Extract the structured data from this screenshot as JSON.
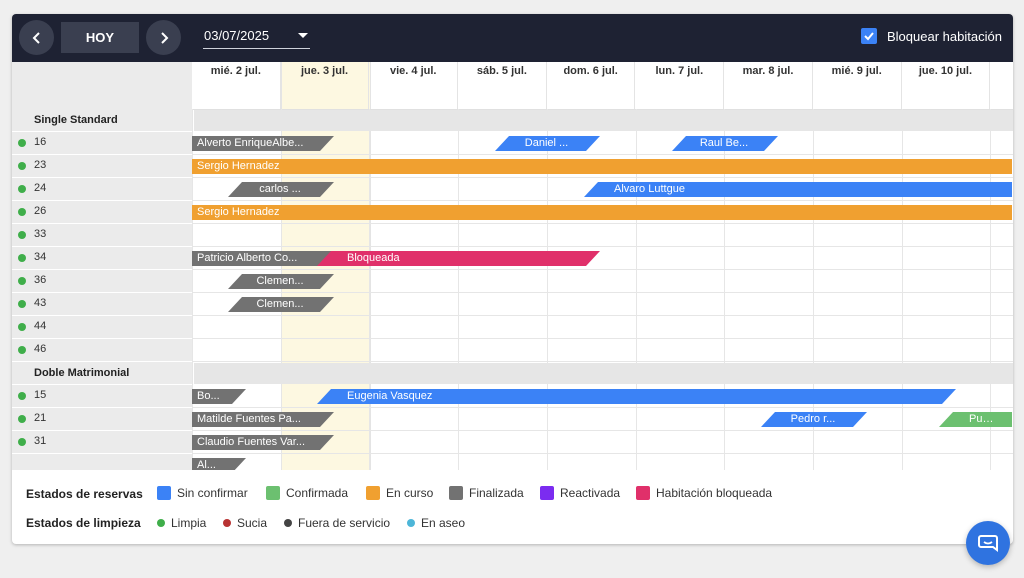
{
  "toolbar": {
    "prev_icon": "chevron-left-icon",
    "today_label": "HOY",
    "next_icon": "chevron-right-icon",
    "date_value": "03/07/2025",
    "block_room_label": "Bloquear habitación",
    "block_room_checked": true
  },
  "days": [
    "mié. 2 jul.",
    "jue. 3 jul.",
    "vie. 4 jul.",
    "sáb. 5 jul.",
    "dom. 6 jul.",
    "lun. 7 jul.",
    "mar. 8 jul.",
    "mié. 9 jul.",
    "jue. 10 jul."
  ],
  "today_label": "jue. 3 jul.",
  "categories": [
    {
      "name": "Single Standard",
      "rooms": [
        {
          "number": "16",
          "status": "Limpia",
          "bookings": [
            {
              "guest": "Alverto EnriqueAlbe...",
              "state": "Finalizada"
            },
            {
              "guest": "Daniel ...",
              "state": "Sin confirmar"
            },
            {
              "guest": "Raul Be...",
              "state": "Sin confirmar"
            }
          ]
        },
        {
          "number": "23",
          "status": "Limpia",
          "bookings": [
            {
              "guest": "Sergio Hernadez",
              "state": "En curso"
            }
          ]
        },
        {
          "number": "24",
          "status": "Limpia",
          "bookings": [
            {
              "guest": "carlos ...",
              "state": "Finalizada"
            },
            {
              "guest": "Alvaro Luttgue",
              "state": "Sin confirmar"
            }
          ]
        },
        {
          "number": "26",
          "status": "Limpia",
          "bookings": [
            {
              "guest": "Sergio Hernadez",
              "state": "En curso"
            }
          ]
        },
        {
          "number": "33",
          "status": "Limpia",
          "bookings": []
        },
        {
          "number": "34",
          "status": "Limpia",
          "bookings": [
            {
              "guest": "Patricio Alberto Co...",
              "state": "Finalizada"
            },
            {
              "guest": "Bloqueada",
              "state": "Habitación bloqueada"
            }
          ]
        },
        {
          "number": "36",
          "status": "Limpia",
          "bookings": [
            {
              "guest": "Clemen...",
              "state": "Finalizada"
            }
          ]
        },
        {
          "number": "43",
          "status": "Limpia",
          "bookings": [
            {
              "guest": "Clemen...",
              "state": "Finalizada"
            }
          ]
        },
        {
          "number": "44",
          "status": "Limpia",
          "bookings": []
        },
        {
          "number": "46",
          "status": "Limpia",
          "bookings": []
        }
      ]
    },
    {
      "name": "Doble Matrimonial",
      "rooms": [
        {
          "number": "15",
          "status": "Limpia",
          "bookings": [
            {
              "guest": "Bo...",
              "state": "Finalizada"
            },
            {
              "guest": "Eugenia Vasquez",
              "state": "Sin confirmar"
            }
          ]
        },
        {
          "number": "21",
          "status": "Limpia",
          "bookings": [
            {
              "guest": "Matilde Fuentes Pa...",
              "state": "Finalizada"
            },
            {
              "guest": "Pedro r...",
              "state": "Sin confirmar"
            },
            {
              "guest": "Pura Gu",
              "state": "Confirmada"
            }
          ]
        },
        {
          "number": "31",
          "status": "Limpia",
          "bookings": [
            {
              "guest": "Claudio Fuentes Var...",
              "state": "Finalizada"
            }
          ]
        },
        {
          "number": "",
          "status": "",
          "bookings": [
            {
              "guest": "Al...",
              "state": "Finalizada"
            }
          ]
        }
      ]
    }
  ],
  "legend": {
    "reservations_title": "Estados de reservas",
    "reservations": [
      {
        "label": "Sin confirmar",
        "color": "#3b82f6"
      },
      {
        "label": "Confirmada",
        "color": "#6cc070"
      },
      {
        "label": "En curso",
        "color": "#f0a030"
      },
      {
        "label": "Finalizada",
        "color": "#727272"
      },
      {
        "label": "Reactivada",
        "color": "#7b2cf0"
      },
      {
        "label": "Habitación bloqueada",
        "color": "#e0306a"
      }
    ],
    "cleaning_title": "Estados de limpieza",
    "cleaning": [
      {
        "label": "Limpia",
        "color": "#3fae4a"
      },
      {
        "label": "Sucia",
        "color": "#b83232"
      },
      {
        "label": "Fuera de servicio",
        "color": "#444444"
      },
      {
        "label": "En aseo",
        "color": "#4db6d8"
      }
    ]
  },
  "chat_icon": "chat-bubble-icon"
}
